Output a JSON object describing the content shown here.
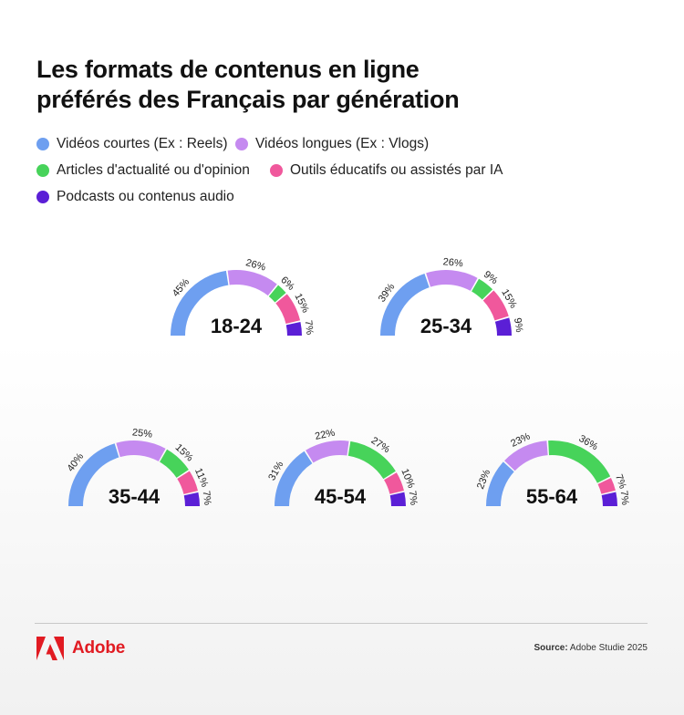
{
  "title": {
    "line1": "Les formats de contenus en ligne",
    "line2": "préférés des Français par génération"
  },
  "legend": [
    {
      "label": "Vidéos courtes  (Ex : Reels)",
      "color": "#6e9ff0"
    },
    {
      "label": "Vidéos longues (Ex : Vlogs)",
      "color": "#c58af0"
    },
    {
      "label": "Articles d'actualité ou d'opinion",
      "color": "#47d35a"
    },
    {
      "label": "Outils éducatifs ou assistés par IA",
      "color": "#f0589c"
    },
    {
      "label": "Podcasts ou contenus audio",
      "color": "#5b1fd6"
    }
  ],
  "chart_data": [
    {
      "type": "gauge",
      "title": "18-24",
      "categories": [
        "Vidéos courtes",
        "Vidéos longues",
        "Articles",
        "Outils IA",
        "Podcasts"
      ],
      "values": [
        45,
        26,
        6,
        15,
        7
      ]
    },
    {
      "type": "gauge",
      "title": "25-34",
      "categories": [
        "Vidéos courtes",
        "Vidéos longues",
        "Articles",
        "Outils IA",
        "Podcasts"
      ],
      "values": [
        39,
        26,
        9,
        15,
        9
      ]
    },
    {
      "type": "gauge",
      "title": "35-44",
      "categories": [
        "Vidéos courtes",
        "Vidéos longues",
        "Articles",
        "Outils IA",
        "Podcasts"
      ],
      "values": [
        40,
        25,
        15,
        11,
        7
      ]
    },
    {
      "type": "gauge",
      "title": "45-54",
      "categories": [
        "Vidéos courtes",
        "Vidéos longues",
        "Articles",
        "Outils IA",
        "Podcasts"
      ],
      "values": [
        31,
        22,
        27,
        10,
        7
      ]
    },
    {
      "type": "gauge",
      "title": "55-64",
      "categories": [
        "Vidéos courtes",
        "Vidéos longues",
        "Articles",
        "Outils IA",
        "Podcasts"
      ],
      "values": [
        23,
        23,
        36,
        7,
        7
      ]
    }
  ],
  "footer": {
    "logo_text": "Adobe",
    "source_label": "Source:",
    "source_text": "Adobe Studie 2025",
    "logo_color": "#e11b22"
  }
}
